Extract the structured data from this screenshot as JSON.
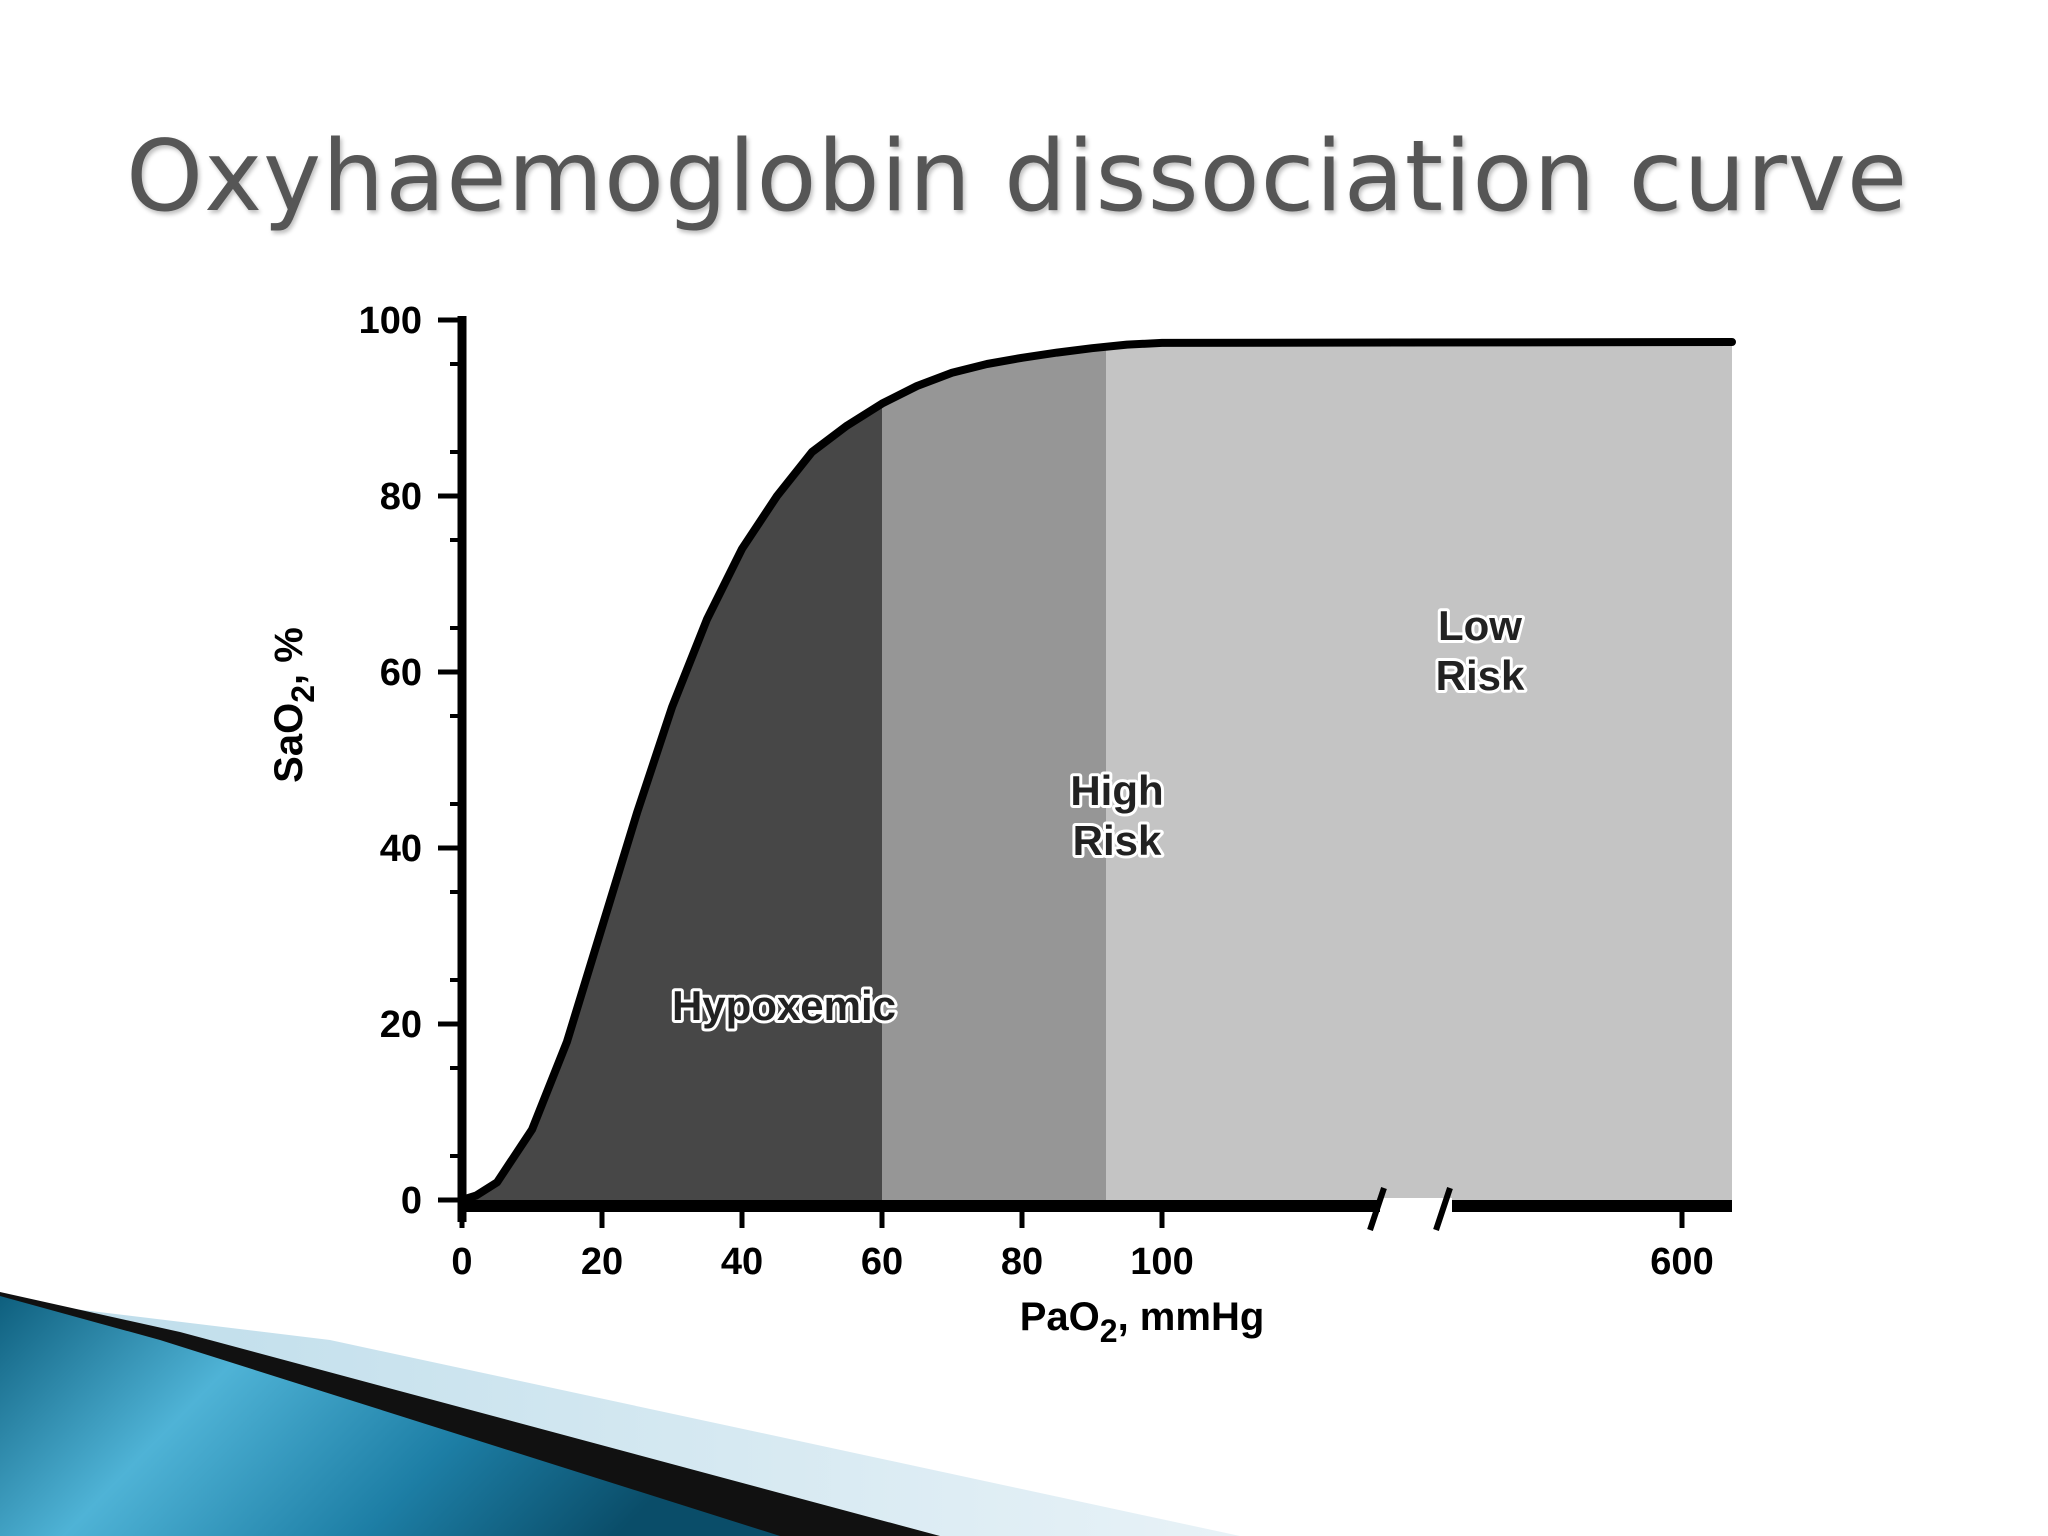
{
  "slide": {
    "title": "Oxyhaemoglobin dissociation curve"
  },
  "chart_data": {
    "type": "area",
    "title": "",
    "xlabel": "PaO2, mmHg",
    "xlabel_parts": {
      "main": "PaO",
      "sub": "2",
      "rest": ", mmHg"
    },
    "ylabel": "SaO2, %",
    "ylabel_parts": {
      "main": "SaO",
      "sub": "2",
      "rest": ", %"
    },
    "xlim": [
      0,
      600
    ],
    "ylim": [
      0,
      100
    ],
    "x_axis_break": {
      "after": 100,
      "before": 600
    },
    "x_ticks": [
      0,
      20,
      40,
      60,
      80,
      100,
      600
    ],
    "y_ticks": [
      0,
      20,
      40,
      60,
      80,
      100
    ],
    "grid": false,
    "series": [
      {
        "x": [
          0,
          2,
          5,
          10,
          15,
          20,
          25,
          30,
          35,
          40,
          45,
          50,
          55,
          60,
          65,
          70,
          75,
          80,
          85,
          90,
          95,
          100,
          600
        ],
        "y": [
          0,
          0.5,
          2,
          8,
          18,
          31,
          44,
          56,
          66,
          74,
          80,
          85,
          88,
          90.5,
          92.5,
          94,
          95,
          95.7,
          96.3,
          96.8,
          97.2,
          97.4,
          97.5
        ]
      }
    ],
    "regions": [
      {
        "label": "Hypoxemic",
        "lines": [
          "Hypoxemic"
        ],
        "x_range": [
          0,
          60
        ],
        "color": "#474747"
      },
      {
        "label": "High Risk",
        "lines": [
          "High",
          "Risk"
        ],
        "x_range": [
          60,
          92
        ],
        "color": "#969696"
      },
      {
        "label": "Low Risk",
        "lines": [
          "Low",
          "Risk"
        ],
        "x_range": [
          92,
          600
        ],
        "color": "#c4c4c4"
      }
    ]
  }
}
